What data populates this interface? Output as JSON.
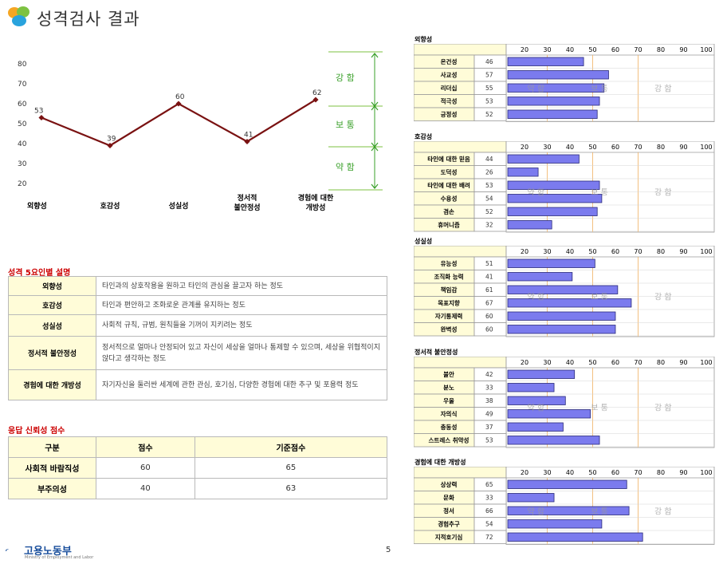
{
  "header": {
    "title": "성격검사 결과"
  },
  "line_chart": {
    "type": "line",
    "categories": [
      "외향성",
      "호감성",
      "성실성",
      "정서적\n불안정성",
      "경험에 대한\n개방성"
    ],
    "values": [
      53,
      39,
      60,
      41,
      62
    ],
    "y_ticks": [
      80,
      70,
      60,
      50,
      40,
      30,
      20
    ],
    "ylim": [
      20,
      80
    ],
    "zones": [
      "강 함",
      "보 통",
      "약 함"
    ],
    "line_color": "#7a1212"
  },
  "chart_data": {
    "type": "line",
    "categories": [
      "외향성",
      "호감성",
      "성실성",
      "정서적 불안정성",
      "경험에 대한 개방성"
    ],
    "values": [
      53,
      39,
      60,
      41,
      62
    ],
    "ylim": [
      20,
      80
    ]
  },
  "factor_section": {
    "title": "성격 5요인별 설명",
    "rows": [
      {
        "name": "외향성",
        "desc": "타인과의 상호작용을 원하고 타인의 관심을 끌고자 하는 정도"
      },
      {
        "name": "호감성",
        "desc": "타인과 편안하고 조화로운 관계를 유지하는 정도"
      },
      {
        "name": "성실성",
        "desc": "사회적 규칙, 규범, 원칙들을 기꺼이 지키려는 정도"
      },
      {
        "name": "정서적 불안정성",
        "desc": "정서적으로 얼마나 안정되어 있고 자신이 세상을 얼마나 통제할 수 있으며, 세상을 위협적이지 않다고 생각하는 정도"
      },
      {
        "name": "경험에 대한 개방성",
        "desc": "자기자신을 둘러싼 세계에 관한 관심, 호기심, 다양한 경험에 대한 추구 및 포용력 정도"
      }
    ]
  },
  "response_section": {
    "title": "응답 신뢰성 점수",
    "headers": [
      "구분",
      "점수",
      "기준점수"
    ],
    "rows": [
      {
        "name": "사회적 바람직성",
        "score": "60",
        "criterion": "65"
      },
      {
        "name": "부주의성",
        "score": "40",
        "criterion": "63"
      }
    ]
  },
  "footer": {
    "ministry": "고용노동부",
    "ministry_sub": "Ministry of Employment and Labor",
    "page": "5"
  },
  "bar_panels": {
    "scale_labels": [
      "20",
      "30",
      "40",
      "50",
      "60",
      "70",
      "80",
      "90",
      "100"
    ],
    "zone_labels": [
      "약 함",
      "보 통",
      "강 함"
    ],
    "bar_color": "#7b7bee",
    "panels": [
      {
        "title": "외향성",
        "items": [
          {
            "name": "온건성",
            "value": 46
          },
          {
            "name": "사교성",
            "value": 57
          },
          {
            "name": "리더십",
            "value": 55
          },
          {
            "name": "적극성",
            "value": 53
          },
          {
            "name": "긍정성",
            "value": 52
          }
        ]
      },
      {
        "title": "호감성",
        "items": [
          {
            "name": "타인에 대한 믿음",
            "value": 44
          },
          {
            "name": "도덕성",
            "value": 26
          },
          {
            "name": "타인에 대한 배려",
            "value": 53
          },
          {
            "name": "수용성",
            "value": 54
          },
          {
            "name": "겸손",
            "value": 52
          },
          {
            "name": "휴머니즘",
            "value": 32
          }
        ]
      },
      {
        "title": "성실성",
        "items": [
          {
            "name": "유능성",
            "value": 51
          },
          {
            "name": "조직화 능력",
            "value": 41
          },
          {
            "name": "책임감",
            "value": 61
          },
          {
            "name": "목표지향",
            "value": 67
          },
          {
            "name": "자기통제력",
            "value": 60
          },
          {
            "name": "완벽성",
            "value": 60
          }
        ]
      },
      {
        "title": "정서적 불안정성",
        "items": [
          {
            "name": "불안",
            "value": 42
          },
          {
            "name": "분노",
            "value": 33
          },
          {
            "name": "우울",
            "value": 38
          },
          {
            "name": "자의식",
            "value": 49
          },
          {
            "name": "충동성",
            "value": 37
          },
          {
            "name": "스트레스 취약성",
            "value": 53
          }
        ]
      },
      {
        "title": "경험에 대한 개방성",
        "items": [
          {
            "name": "상상력",
            "value": 65
          },
          {
            "name": "문화",
            "value": 33
          },
          {
            "name": "정서",
            "value": 66
          },
          {
            "name": "경험추구",
            "value": 54
          },
          {
            "name": "지적호기심",
            "value": 72
          }
        ]
      }
    ]
  }
}
